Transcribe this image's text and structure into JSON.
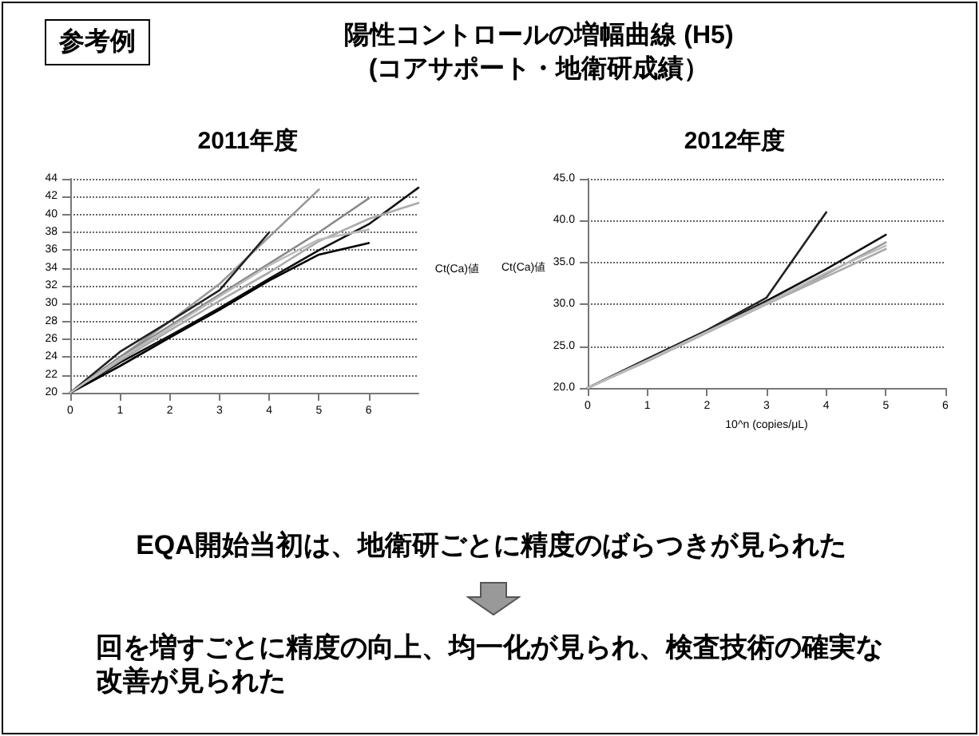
{
  "chart_data": [
    {
      "type": "line",
      "title": "2011年度",
      "ylabel": "Ct(Ca)値",
      "annotations": [
        "参考例",
        "陽性コントロールの増幅曲線 (H5)",
        "(コアサポート・地衛研成績）",
        "EQA開始当初は、地衛研ごとに精度のばらつきが見られた",
        "回を増すごとに精度の向上、均一化が見られ、検査技術の確実な改善が見られた"
      ],
      "x": [
        0,
        1,
        2,
        3,
        4,
        5,
        6,
        7
      ],
      "xlim": [
        0,
        7
      ],
      "xticks": [
        0,
        1,
        2,
        3,
        4,
        5,
        6
      ],
      "ylim": [
        20,
        44
      ],
      "yticks": [
        20,
        22,
        24,
        26,
        28,
        30,
        32,
        34,
        36,
        38,
        40,
        42,
        44
      ],
      "grid": "y",
      "marker": "none",
      "series": [
        {
          "color": "#111111",
          "values": [
            20,
            23.4,
            26.4,
            29.5,
            32.8,
            36.0,
            38.9,
            43.0
          ]
        },
        {
          "color": "#aaaaaa",
          "values": [
            20,
            23.6,
            27.0,
            30.3,
            33.5,
            37.0,
            39.5,
            41.3
          ]
        },
        {
          "color": "#999999",
          "values": [
            20,
            24.0,
            28.0,
            32.2,
            37.5,
            42.8,
            null,
            null
          ]
        },
        {
          "color": "#222222",
          "values": [
            20,
            24.6,
            28.0,
            31.5,
            38.0,
            null,
            null,
            null
          ]
        },
        {
          "color": "#888888",
          "values": [
            20,
            24.0,
            27.5,
            31.0,
            34.5,
            38.0,
            41.8,
            null
          ]
        },
        {
          "color": "#000000",
          "values": [
            20,
            23.0,
            26.2,
            29.3,
            32.6,
            35.5,
            36.8,
            null
          ]
        },
        {
          "color": "#bbbbbb",
          "values": [
            20,
            23.8,
            27.3,
            30.8,
            34.3,
            37.2,
            38.3,
            null
          ]
        }
      ]
    },
    {
      "type": "line",
      "title": "2012年度",
      "ylabel": "Ct(Ca)値",
      "xlabel": "10^n (copies/μL)",
      "x": [
        0,
        1,
        2,
        3,
        4,
        5
      ],
      "xlim": [
        0,
        6
      ],
      "xticks": [
        0,
        1,
        2,
        3,
        4,
        5,
        6
      ],
      "ylim": [
        20,
        45
      ],
      "yticks": [
        {
          "value": 20,
          "label": "20.0"
        },
        {
          "value": 25,
          "label": "25.0"
        },
        {
          "value": 30,
          "label": "30.0"
        },
        {
          "value": 35,
          "label": "35.0"
        },
        {
          "value": 40,
          "label": "40.0"
        },
        {
          "value": 45,
          "label": "45.0"
        }
      ],
      "grid": "y",
      "marker": "none",
      "series": [
        {
          "color": "#111111",
          "values": [
            20,
            23.4,
            26.8,
            30.4,
            34.2,
            38.3
          ]
        },
        {
          "color": "#222222",
          "values": [
            20,
            23.5,
            26.9,
            30.8,
            41.0,
            null
          ]
        },
        {
          "color": "#999999",
          "values": [
            20,
            23.3,
            26.7,
            30.2,
            33.6,
            37.4
          ]
        },
        {
          "color": "#aaaaaa",
          "values": [
            20,
            23.2,
            26.6,
            30.0,
            33.3,
            36.6
          ]
        },
        {
          "color": "#bbbbbb",
          "values": [
            20,
            23.3,
            26.7,
            30.1,
            33.8,
            37.0
          ]
        }
      ]
    }
  ]
}
